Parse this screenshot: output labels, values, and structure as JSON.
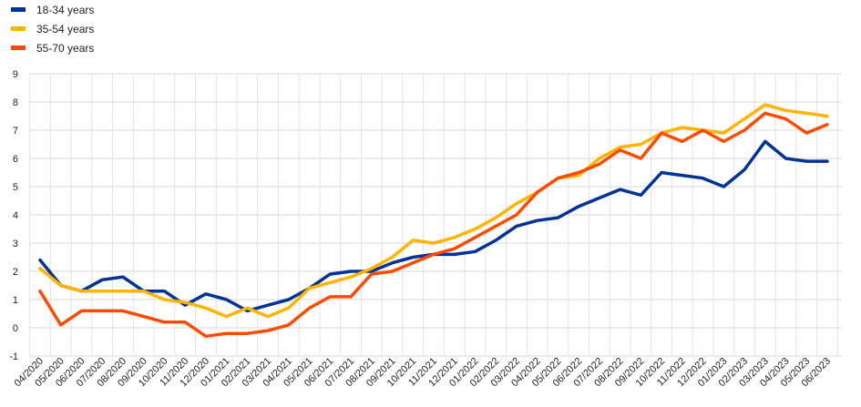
{
  "chart_data": {
    "type": "line",
    "title": "",
    "xlabel": "",
    "ylabel": "",
    "ylim": [
      -1,
      9
    ],
    "yticks": [
      -1,
      0,
      1,
      2,
      3,
      4,
      5,
      6,
      7,
      8,
      9
    ],
    "grid": true,
    "legend_position": "top-left",
    "categories": [
      "04/2020",
      "05/2020",
      "06/2020",
      "07/2020",
      "08/2020",
      "09/2020",
      "10/2020",
      "11/2020",
      "12/2020",
      "01/2021",
      "02/2021",
      "03/2021",
      "04/2021",
      "05/2021",
      "06/2021",
      "07/2021",
      "08/2021",
      "09/2021",
      "10/2021",
      "11/2021",
      "12/2021",
      "01/2022",
      "02/2022",
      "03/2022",
      "04/2022",
      "05/2022",
      "06/2022",
      "07/2022",
      "08/2022",
      "09/2022",
      "10/2022",
      "11/2022",
      "12/2022",
      "01/2023",
      "02/2023",
      "03/2023",
      "04/2023",
      "05/2023",
      "06/2023"
    ],
    "series": [
      {
        "name": "18-34 years",
        "color": "#003399",
        "values": [
          2.4,
          1.5,
          1.3,
          1.7,
          1.8,
          1.3,
          1.3,
          0.8,
          1.2,
          1.0,
          0.6,
          0.8,
          1.0,
          1.4,
          1.9,
          2.0,
          2.0,
          2.3,
          2.5,
          2.6,
          2.6,
          2.7,
          3.1,
          3.6,
          3.8,
          3.9,
          4.3,
          4.6,
          4.9,
          4.7,
          5.5,
          5.4,
          5.3,
          5.0,
          5.6,
          6.6,
          6.0,
          5.9,
          5.9
        ]
      },
      {
        "name": "35-54 years",
        "color": "#FFB400",
        "values": [
          2.1,
          1.5,
          1.3,
          1.3,
          1.3,
          1.3,
          1.0,
          0.9,
          0.7,
          0.4,
          0.7,
          0.4,
          0.7,
          1.4,
          1.6,
          1.8,
          2.1,
          2.5,
          3.1,
          3.0,
          3.2,
          3.5,
          3.9,
          4.4,
          4.8,
          5.3,
          5.4,
          6.0,
          6.4,
          6.5,
          6.9,
          7.1,
          7.0,
          6.9,
          7.4,
          7.9,
          7.7,
          7.6,
          7.5
        ]
      },
      {
        "name": "55-70 years",
        "color": "#FF4B00",
        "values": [
          1.3,
          0.1,
          0.6,
          0.6,
          0.6,
          0.4,
          0.2,
          0.2,
          -0.3,
          -0.2,
          -0.2,
          -0.1,
          0.1,
          0.7,
          1.1,
          1.1,
          1.9,
          2.0,
          2.3,
          2.6,
          2.8,
          3.2,
          3.6,
          4.0,
          4.8,
          5.3,
          5.5,
          5.8,
          6.3,
          6.0,
          6.9,
          6.6,
          7.0,
          6.6,
          7.0,
          7.6,
          7.4,
          6.9,
          7.2
        ]
      }
    ]
  }
}
